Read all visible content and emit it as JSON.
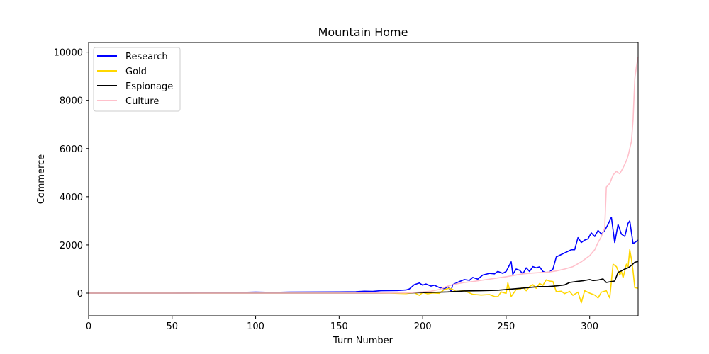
{
  "chart_data": {
    "type": "line",
    "title": "Mountain Home",
    "xlabel": "Turn Number",
    "ylabel": "Commerce",
    "xlim": [
      0,
      329
    ],
    "ylim": [
      -940,
      10400
    ],
    "xticks": [
      0,
      50,
      100,
      150,
      200,
      250,
      300
    ],
    "yticks": [
      0,
      2000,
      4000,
      6000,
      8000,
      10000
    ],
    "grid": false,
    "legend_position": "top-left",
    "series": [
      {
        "name": "Research",
        "color": "#0000ff",
        "points": [
          [
            0,
            0
          ],
          [
            50,
            0
          ],
          [
            85,
            20
          ],
          [
            100,
            40
          ],
          [
            110,
            30
          ],
          [
            120,
            40
          ],
          [
            150,
            50
          ],
          [
            160,
            60
          ],
          [
            165,
            80
          ],
          [
            170,
            70
          ],
          [
            175,
            100
          ],
          [
            185,
            110
          ],
          [
            190,
            130
          ],
          [
            192,
            170
          ],
          [
            195,
            350
          ],
          [
            198,
            420
          ],
          [
            200,
            330
          ],
          [
            202,
            380
          ],
          [
            205,
            290
          ],
          [
            207,
            330
          ],
          [
            210,
            230
          ],
          [
            213,
            180
          ],
          [
            215,
            270
          ],
          [
            217,
            90
          ],
          [
            218,
            350
          ],
          [
            222,
            480
          ],
          [
            225,
            560
          ],
          [
            228,
            530
          ],
          [
            230,
            650
          ],
          [
            233,
            580
          ],
          [
            236,
            750
          ],
          [
            240,
            820
          ],
          [
            243,
            800
          ],
          [
            245,
            900
          ],
          [
            248,
            820
          ],
          [
            250,
            900
          ],
          [
            253,
            1300
          ],
          [
            254,
            780
          ],
          [
            256,
            1000
          ],
          [
            258,
            950
          ],
          [
            260,
            800
          ],
          [
            262,
            1050
          ],
          [
            264,
            900
          ],
          [
            266,
            1100
          ],
          [
            268,
            1050
          ],
          [
            270,
            1090
          ],
          [
            272,
            900
          ],
          [
            274,
            850
          ],
          [
            276,
            880
          ],
          [
            278,
            1000
          ],
          [
            280,
            1500
          ],
          [
            283,
            1600
          ],
          [
            286,
            1700
          ],
          [
            289,
            1800
          ],
          [
            291,
            1800
          ],
          [
            293,
            2300
          ],
          [
            295,
            2100
          ],
          [
            297,
            2200
          ],
          [
            299,
            2250
          ],
          [
            301,
            2500
          ],
          [
            303,
            2350
          ],
          [
            305,
            2600
          ],
          [
            307,
            2450
          ],
          [
            309,
            2600
          ],
          [
            311,
            2850
          ],
          [
            313,
            3150
          ],
          [
            315,
            2100
          ],
          [
            317,
            2850
          ],
          [
            319,
            2450
          ],
          [
            321,
            2350
          ],
          [
            323,
            2900
          ],
          [
            324,
            3000
          ],
          [
            326,
            2050
          ],
          [
            328,
            2150
          ],
          [
            329,
            2200
          ]
        ]
      },
      {
        "name": "Gold",
        "color": "#ffd700",
        "points": [
          [
            0,
            0
          ],
          [
            50,
            0
          ],
          [
            100,
            0
          ],
          [
            150,
            0
          ],
          [
            180,
            0
          ],
          [
            190,
            -20
          ],
          [
            195,
            20
          ],
          [
            198,
            -90
          ],
          [
            200,
            30
          ],
          [
            203,
            -30
          ],
          [
            206,
            10
          ],
          [
            210,
            -10
          ],
          [
            213,
            150
          ],
          [
            216,
            200
          ],
          [
            218,
            150
          ],
          [
            220,
            70
          ],
          [
            225,
            100
          ],
          [
            230,
            -50
          ],
          [
            235,
            -80
          ],
          [
            240,
            -60
          ],
          [
            243,
            -140
          ],
          [
            245,
            -150
          ],
          [
            247,
            50
          ],
          [
            250,
            -10
          ],
          [
            251,
            430
          ],
          [
            253,
            -140
          ],
          [
            256,
            150
          ],
          [
            258,
            140
          ],
          [
            260,
            250
          ],
          [
            262,
            100
          ],
          [
            264,
            270
          ],
          [
            266,
            350
          ],
          [
            268,
            200
          ],
          [
            270,
            400
          ],
          [
            272,
            320
          ],
          [
            274,
            550
          ],
          [
            276,
            500
          ],
          [
            278,
            480
          ],
          [
            280,
            60
          ],
          [
            283,
            80
          ],
          [
            285,
            -20
          ],
          [
            288,
            70
          ],
          [
            290,
            -90
          ],
          [
            293,
            40
          ],
          [
            295,
            -400
          ],
          [
            297,
            100
          ],
          [
            300,
            0
          ],
          [
            303,
            -80
          ],
          [
            305,
            -200
          ],
          [
            307,
            40
          ],
          [
            310,
            100
          ],
          [
            312,
            -200
          ],
          [
            314,
            1200
          ],
          [
            316,
            1100
          ],
          [
            318,
            750
          ],
          [
            319,
            900
          ],
          [
            320,
            640
          ],
          [
            322,
            1200
          ],
          [
            323,
            1100
          ],
          [
            324,
            1800
          ],
          [
            325,
            1400
          ],
          [
            326,
            900
          ],
          [
            327,
            230
          ],
          [
            329,
            200
          ]
        ]
      },
      {
        "name": "Espionage",
        "color": "#000000",
        "points": [
          [
            0,
            0
          ],
          [
            50,
            0
          ],
          [
            100,
            0
          ],
          [
            150,
            0
          ],
          [
            190,
            10
          ],
          [
            205,
            30
          ],
          [
            215,
            50
          ],
          [
            225,
            90
          ],
          [
            235,
            100
          ],
          [
            245,
            120
          ],
          [
            250,
            150
          ],
          [
            255,
            180
          ],
          [
            260,
            210
          ],
          [
            265,
            240
          ],
          [
            270,
            270
          ],
          [
            275,
            270
          ],
          [
            280,
            300
          ],
          [
            285,
            340
          ],
          [
            288,
            440
          ],
          [
            292,
            480
          ],
          [
            296,
            510
          ],
          [
            300,
            560
          ],
          [
            302,
            520
          ],
          [
            305,
            540
          ],
          [
            308,
            590
          ],
          [
            310,
            440
          ],
          [
            313,
            480
          ],
          [
            315,
            500
          ],
          [
            317,
            860
          ],
          [
            319,
            920
          ],
          [
            321,
            1000
          ],
          [
            323,
            1050
          ],
          [
            325,
            1150
          ],
          [
            327,
            1280
          ],
          [
            329,
            1310
          ]
        ]
      },
      {
        "name": "Culture",
        "color": "#ffc0cb",
        "points": [
          [
            0,
            0
          ],
          [
            50,
            0
          ],
          [
            100,
            0
          ],
          [
            150,
            0
          ],
          [
            190,
            10
          ],
          [
            200,
            50
          ],
          [
            205,
            80
          ],
          [
            210,
            150
          ],
          [
            215,
            290
          ],
          [
            220,
            380
          ],
          [
            225,
            440
          ],
          [
            230,
            480
          ],
          [
            235,
            530
          ],
          [
            240,
            580
          ],
          [
            245,
            630
          ],
          [
            250,
            680
          ],
          [
            255,
            740
          ],
          [
            260,
            800
          ],
          [
            265,
            830
          ],
          [
            270,
            850
          ],
          [
            275,
            870
          ],
          [
            280,
            920
          ],
          [
            285,
            1000
          ],
          [
            290,
            1100
          ],
          [
            295,
            1300
          ],
          [
            300,
            1550
          ],
          [
            303,
            1800
          ],
          [
            305,
            2100
          ],
          [
            307,
            2350
          ],
          [
            309,
            2700
          ],
          [
            310,
            4400
          ],
          [
            312,
            4550
          ],
          [
            314,
            4900
          ],
          [
            316,
            5050
          ],
          [
            318,
            4950
          ],
          [
            320,
            5200
          ],
          [
            322,
            5500
          ],
          [
            323,
            5700
          ],
          [
            325,
            6300
          ],
          [
            326,
            7200
          ],
          [
            327,
            8900
          ],
          [
            328,
            9400
          ],
          [
            329,
            9800
          ]
        ]
      }
    ]
  }
}
